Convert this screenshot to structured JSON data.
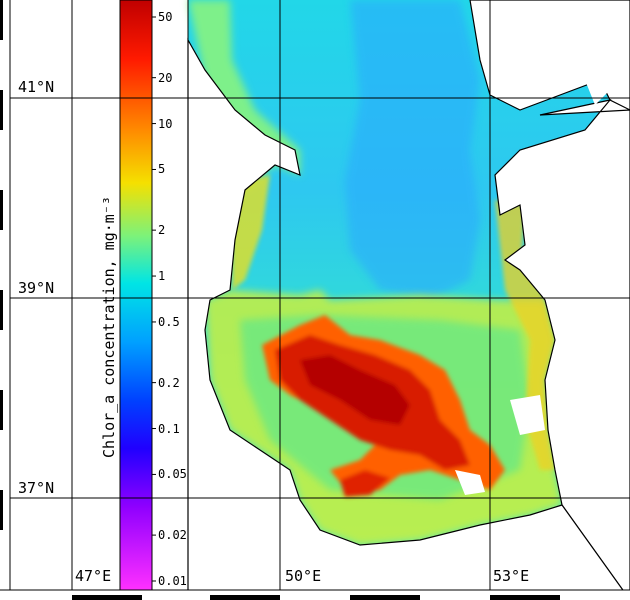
{
  "colorbar": {
    "title": "Chlor_a concentration, mg·m⁻³",
    "ticks": [
      "50",
      "20",
      "10",
      "5",
      "2",
      "1",
      "0.5",
      "0.2",
      "0.1",
      "0.05",
      "0.02",
      "0.01"
    ],
    "tick_values": [
      50,
      20,
      10,
      5,
      2,
      1,
      0.5,
      0.2,
      0.1,
      0.05,
      0.02,
      0.01
    ],
    "scale": "log",
    "range": [
      0.01,
      50
    ]
  },
  "axes": {
    "latitude_labels": [
      "41°N",
      "39°N",
      "37°N"
    ],
    "longitude_labels": [
      "47°E",
      "50°E",
      "53°E"
    ]
  },
  "colors": {
    "land": "#ffffff",
    "low": "#ff00ff",
    "mid": "#00e5ff",
    "high": "#b00000",
    "grid": "#000000"
  }
}
